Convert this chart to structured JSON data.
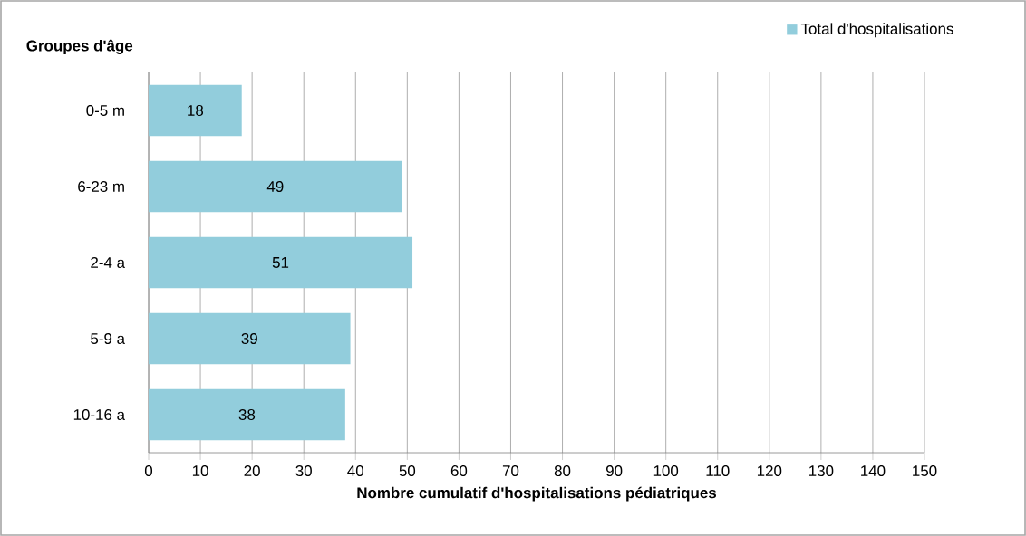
{
  "chart_data": {
    "type": "bar",
    "orientation": "horizontal",
    "ylabel": "Groupes d'âge",
    "xlabel": "Nombre cumulatif d'hospitalisations pédiatriques",
    "categories": [
      "0-5 m",
      "6-23 m",
      "2-4 a",
      "5-9 a",
      "10-16 a"
    ],
    "series": [
      {
        "name": "Total d'hospitalisations",
        "color": "#92cddc",
        "values": [
          18,
          49,
          51,
          39,
          38
        ]
      }
    ],
    "xlim": [
      0,
      150
    ],
    "xticks": [
      0,
      10,
      20,
      30,
      40,
      50,
      60,
      70,
      80,
      90,
      100,
      110,
      120,
      130,
      140,
      150
    ],
    "grid": "x",
    "legend": "top right",
    "data_labels": true
  }
}
